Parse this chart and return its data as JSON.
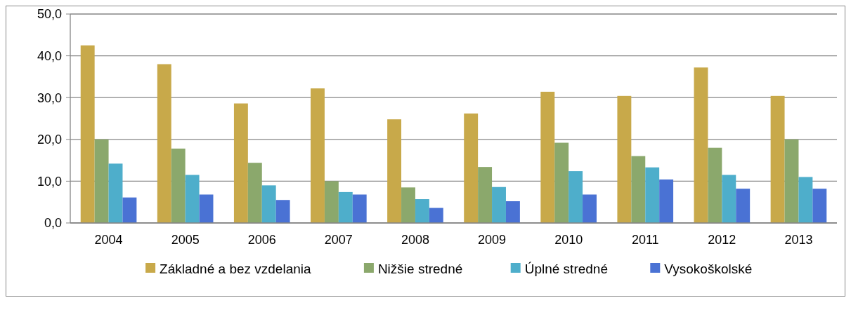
{
  "chart_data": {
    "type": "bar",
    "categories": [
      "2004",
      "2005",
      "2006",
      "2007",
      "2008",
      "2009",
      "2010",
      "2011",
      "2012",
      "2013"
    ],
    "series": [
      {
        "name": "Základné a bez vzdelania",
        "color": "#c8a94a",
        "values": [
          42.5,
          38.0,
          28.6,
          32.2,
          24.8,
          26.2,
          31.4,
          30.4,
          37.2,
          30.4
        ]
      },
      {
        "name": "Nižšie stredné",
        "color": "#8ba86c",
        "values": [
          20.0,
          17.8,
          14.4,
          10.0,
          8.5,
          13.4,
          19.2,
          16.0,
          18.0,
          20.0
        ]
      },
      {
        "name": "Úplné stredné",
        "color": "#4eaecb",
        "values": [
          14.2,
          11.5,
          9.0,
          7.4,
          5.7,
          8.6,
          12.4,
          13.3,
          11.5,
          11.0
        ]
      },
      {
        "name": "Vysokoškolské",
        "color": "#4a72d4",
        "values": [
          6.1,
          6.8,
          5.5,
          6.8,
          3.6,
          5.2,
          6.8,
          10.4,
          8.2,
          8.2
        ]
      }
    ],
    "ylim": [
      0,
      50
    ],
    "yticks": [
      {
        "value": 0,
        "label": "0,0"
      },
      {
        "value": 10,
        "label": "10,0"
      },
      {
        "value": 20,
        "label": "20,0"
      },
      {
        "value": 30,
        "label": "30,0"
      },
      {
        "value": 40,
        "label": "40,0"
      },
      {
        "value": 50,
        "label": "50,0"
      }
    ],
    "grid": "y",
    "legend": "bottom"
  }
}
